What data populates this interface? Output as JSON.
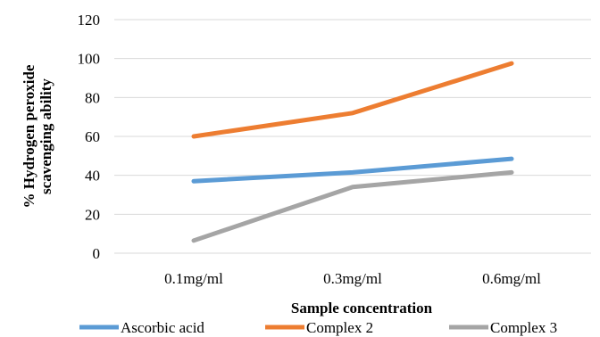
{
  "chart_data": {
    "type": "line",
    "categories": [
      "0.1mg/ml",
      "0.3mg/ml",
      "0.6mg/ml"
    ],
    "series": [
      {
        "name": "Ascorbic acid",
        "values": [
          37,
          41.5,
          48.5
        ],
        "color": "#5B9BD5"
      },
      {
        "name": "Complex 2",
        "values": [
          60,
          72,
          97.5
        ],
        "color": "#ED7D31"
      },
      {
        "name": "Complex 3",
        "values": [
          6.5,
          34,
          41.5
        ],
        "color": "#A5A5A5"
      }
    ],
    "xlabel": "Sample concentration",
    "ylabel_lines": [
      "% Hydrogen peroxide",
      "scavenging ability"
    ],
    "ylim": [
      0,
      120
    ],
    "yticks": [
      0,
      20,
      40,
      60,
      80,
      100,
      120
    ],
    "grid": true,
    "legend_position": "bottom"
  }
}
